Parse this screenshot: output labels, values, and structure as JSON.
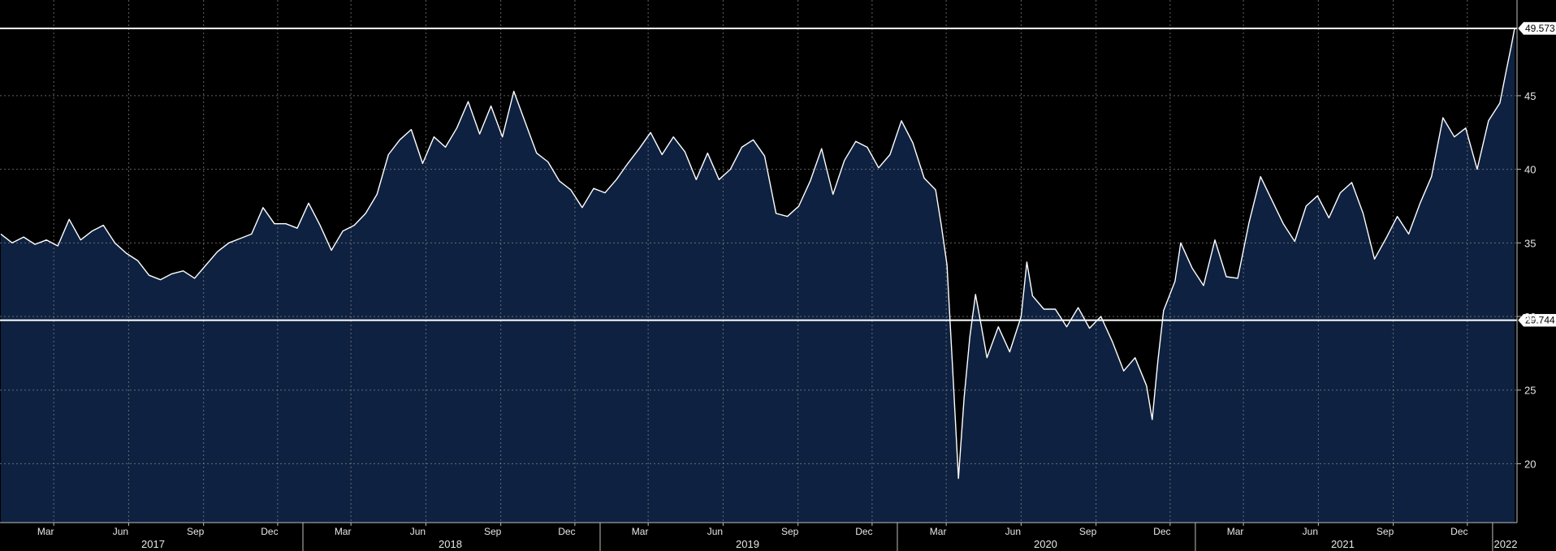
{
  "chart_data": {
    "type": "area",
    "title": "",
    "xlabel": "",
    "ylabel": "",
    "x_range": [
      "2016-12-25",
      "2022-01-31"
    ],
    "ylim": [
      16.0,
      51.5
    ],
    "y_ticks": [
      20,
      25,
      30,
      35,
      40,
      45
    ],
    "grid": true,
    "colors": {
      "background": "#000000",
      "area_fill": "#0e2140",
      "line": "#ffffff",
      "grid": "#8c8c8c"
    },
    "month_ticks": [
      {
        "label": "Mar",
        "date": "2017-03-01"
      },
      {
        "label": "Jun",
        "date": "2017-06-01"
      },
      {
        "label": "Sep",
        "date": "2017-09-01"
      },
      {
        "label": "Dec",
        "date": "2017-12-01"
      },
      {
        "label": "Mar",
        "date": "2018-03-01"
      },
      {
        "label": "Jun",
        "date": "2018-06-01"
      },
      {
        "label": "Sep",
        "date": "2018-09-01"
      },
      {
        "label": "Dec",
        "date": "2018-12-01"
      },
      {
        "label": "Mar",
        "date": "2019-03-01"
      },
      {
        "label": "Jun",
        "date": "2019-06-01"
      },
      {
        "label": "Sep",
        "date": "2019-09-01"
      },
      {
        "label": "Dec",
        "date": "2019-12-01"
      },
      {
        "label": "Mar",
        "date": "2020-03-01"
      },
      {
        "label": "Jun",
        "date": "2020-06-01"
      },
      {
        "label": "Sep",
        "date": "2020-09-01"
      },
      {
        "label": "Dec",
        "date": "2020-12-01"
      },
      {
        "label": "Mar",
        "date": "2021-03-01"
      },
      {
        "label": "Jun",
        "date": "2021-06-01"
      },
      {
        "label": "Sep",
        "date": "2021-09-01"
      },
      {
        "label": "Dec",
        "date": "2021-12-01"
      }
    ],
    "year_labels": [
      {
        "label": "2017",
        "date": "2017-07-01"
      },
      {
        "label": "2018",
        "date": "2018-07-01"
      },
      {
        "label": "2019",
        "date": "2019-07-01"
      },
      {
        "label": "2020",
        "date": "2020-07-01"
      },
      {
        "label": "2021",
        "date": "2021-07-01"
      },
      {
        "label": "2022",
        "date": "2022-01-17"
      }
    ],
    "year_boundaries": [
      "2018-01-01",
      "2019-01-01",
      "2020-01-01",
      "2021-01-01",
      "2022-01-01"
    ],
    "highlight_lines": [
      {
        "label": "49.573",
        "value": 49.573
      },
      {
        "label": "29.744",
        "value": 29.744
      }
    ],
    "series": [
      {
        "points": [
          [
            "2016-12-26",
            35.6
          ],
          [
            "2017-01-09",
            35.0
          ],
          [
            "2017-01-23",
            35.4
          ],
          [
            "2017-02-06",
            34.9
          ],
          [
            "2017-02-20",
            35.2
          ],
          [
            "2017-03-06",
            34.8
          ],
          [
            "2017-03-20",
            36.6
          ],
          [
            "2017-04-03",
            35.2
          ],
          [
            "2017-04-17",
            35.8
          ],
          [
            "2017-05-01",
            36.2
          ],
          [
            "2017-05-15",
            35.0
          ],
          [
            "2017-05-29",
            34.3
          ],
          [
            "2017-06-12",
            33.8
          ],
          [
            "2017-06-26",
            32.8
          ],
          [
            "2017-07-10",
            32.5
          ],
          [
            "2017-07-24",
            32.9
          ],
          [
            "2017-08-07",
            33.1
          ],
          [
            "2017-08-21",
            32.6
          ],
          [
            "2017-09-04",
            33.5
          ],
          [
            "2017-09-18",
            34.4
          ],
          [
            "2017-10-02",
            35.0
          ],
          [
            "2017-10-16",
            35.3
          ],
          [
            "2017-10-30",
            35.6
          ],
          [
            "2017-11-13",
            37.4
          ],
          [
            "2017-11-27",
            36.3
          ],
          [
            "2017-12-11",
            36.3
          ],
          [
            "2017-12-25",
            36.0
          ],
          [
            "2018-01-08",
            37.7
          ],
          [
            "2018-01-22",
            36.2
          ],
          [
            "2018-02-05",
            34.5
          ],
          [
            "2018-02-19",
            35.8
          ],
          [
            "2018-03-05",
            36.2
          ],
          [
            "2018-03-19",
            37.0
          ],
          [
            "2018-04-02",
            38.3
          ],
          [
            "2018-04-16",
            41.0
          ],
          [
            "2018-04-30",
            42.0
          ],
          [
            "2018-05-14",
            42.7
          ],
          [
            "2018-05-28",
            40.4
          ],
          [
            "2018-06-11",
            42.2
          ],
          [
            "2018-06-25",
            41.5
          ],
          [
            "2018-07-09",
            42.8
          ],
          [
            "2018-07-23",
            44.6
          ],
          [
            "2018-08-06",
            42.4
          ],
          [
            "2018-08-20",
            44.3
          ],
          [
            "2018-09-03",
            42.2
          ],
          [
            "2018-09-17",
            45.3
          ],
          [
            "2018-10-01",
            43.2
          ],
          [
            "2018-10-15",
            41.1
          ],
          [
            "2018-10-29",
            40.5
          ],
          [
            "2018-11-12",
            39.2
          ],
          [
            "2018-11-26",
            38.6
          ],
          [
            "2018-12-10",
            37.4
          ],
          [
            "2018-12-24",
            38.7
          ],
          [
            "2019-01-07",
            38.4
          ],
          [
            "2019-01-21",
            39.3
          ],
          [
            "2019-02-04",
            40.4
          ],
          [
            "2019-02-18",
            41.4
          ],
          [
            "2019-03-04",
            42.5
          ],
          [
            "2019-03-18",
            41.0
          ],
          [
            "2019-04-01",
            42.2
          ],
          [
            "2019-04-15",
            41.2
          ],
          [
            "2019-04-29",
            39.3
          ],
          [
            "2019-05-13",
            41.1
          ],
          [
            "2019-05-27",
            39.3
          ],
          [
            "2019-06-10",
            40.0
          ],
          [
            "2019-06-24",
            41.5
          ],
          [
            "2019-07-08",
            42.0
          ],
          [
            "2019-07-22",
            40.9
          ],
          [
            "2019-08-05",
            37.0
          ],
          [
            "2019-08-19",
            36.8
          ],
          [
            "2019-09-02",
            37.5
          ],
          [
            "2019-09-16",
            39.2
          ],
          [
            "2019-09-30",
            41.4
          ],
          [
            "2019-10-14",
            38.3
          ],
          [
            "2019-10-28",
            40.6
          ],
          [
            "2019-11-11",
            41.9
          ],
          [
            "2019-11-25",
            41.5
          ],
          [
            "2019-12-09",
            40.1
          ],
          [
            "2019-12-23",
            41.0
          ],
          [
            "2020-01-06",
            43.3
          ],
          [
            "2020-01-20",
            41.8
          ],
          [
            "2020-02-03",
            39.4
          ],
          [
            "2020-02-17",
            38.6
          ],
          [
            "2020-02-24",
            36.2
          ],
          [
            "2020-03-02",
            33.5
          ],
          [
            "2020-03-09",
            26.4
          ],
          [
            "2020-03-16",
            19.0
          ],
          [
            "2020-03-23",
            24.5
          ],
          [
            "2020-03-30",
            28.6
          ],
          [
            "2020-04-06",
            31.5
          ],
          [
            "2020-04-13",
            29.4
          ],
          [
            "2020-04-20",
            27.2
          ],
          [
            "2020-05-04",
            29.3
          ],
          [
            "2020-05-18",
            27.6
          ],
          [
            "2020-06-01",
            30.0
          ],
          [
            "2020-06-08",
            33.7
          ],
          [
            "2020-06-15",
            31.4
          ],
          [
            "2020-06-29",
            30.5
          ],
          [
            "2020-07-13",
            30.5
          ],
          [
            "2020-07-27",
            29.3
          ],
          [
            "2020-08-10",
            30.6
          ],
          [
            "2020-08-24",
            29.2
          ],
          [
            "2020-09-07",
            30.0
          ],
          [
            "2020-09-21",
            28.3
          ],
          [
            "2020-10-05",
            26.3
          ],
          [
            "2020-10-19",
            27.2
          ],
          [
            "2020-11-02",
            25.3
          ],
          [
            "2020-11-09",
            23.0
          ],
          [
            "2020-11-16",
            27.0
          ],
          [
            "2020-11-23",
            30.4
          ],
          [
            "2020-12-07",
            32.4
          ],
          [
            "2020-12-14",
            35.0
          ],
          [
            "2020-12-28",
            33.3
          ],
          [
            "2021-01-11",
            32.1
          ],
          [
            "2021-01-25",
            35.2
          ],
          [
            "2021-02-08",
            32.7
          ],
          [
            "2021-02-22",
            32.6
          ],
          [
            "2021-03-08",
            36.4
          ],
          [
            "2021-03-22",
            39.5
          ],
          [
            "2021-04-05",
            37.9
          ],
          [
            "2021-04-19",
            36.3
          ],
          [
            "2021-05-03",
            35.1
          ],
          [
            "2021-05-17",
            37.5
          ],
          [
            "2021-05-31",
            38.2
          ],
          [
            "2021-06-14",
            36.7
          ],
          [
            "2021-06-28",
            38.4
          ],
          [
            "2021-07-12",
            39.1
          ],
          [
            "2021-07-26",
            37.0
          ],
          [
            "2021-08-09",
            33.9
          ],
          [
            "2021-08-23",
            35.3
          ],
          [
            "2021-09-06",
            36.8
          ],
          [
            "2021-09-20",
            35.6
          ],
          [
            "2021-10-04",
            37.7
          ],
          [
            "2021-10-18",
            39.5
          ],
          [
            "2021-11-01",
            43.5
          ],
          [
            "2021-11-15",
            42.2
          ],
          [
            "2021-11-29",
            42.8
          ],
          [
            "2021-12-13",
            40.0
          ],
          [
            "2021-12-27",
            43.3
          ],
          [
            "2022-01-10",
            44.5
          ],
          [
            "2022-01-17",
            46.5
          ],
          [
            "2022-01-24",
            48.4
          ],
          [
            "2022-01-28",
            49.573
          ]
        ]
      }
    ]
  }
}
